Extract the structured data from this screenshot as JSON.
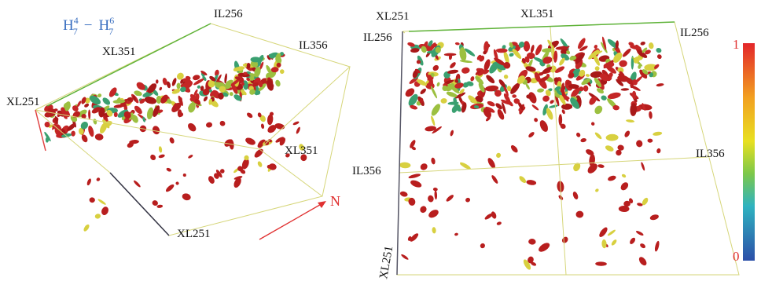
{
  "panel_left": {
    "formula": {
      "left": {
        "base": "H",
        "sup": "4",
        "sub": "7"
      },
      "operator": "−",
      "right": {
        "base": "H",
        "sup": "6",
        "sub": "7"
      }
    },
    "labels": {
      "il_top": "IL256",
      "xl_top": "XL351",
      "il_right": "IL356",
      "xl_left": "XL251",
      "xl_right": "XL351",
      "xl_bottom": "XL251"
    }
  },
  "north": "N",
  "panel_right": {
    "labels": {
      "xl_left_top": "XL251",
      "xl_top": "XL351",
      "il_left_top": "IL256",
      "il_right_top": "IL256",
      "il_left": "IL356",
      "il_right": "IL356",
      "xl_bottom": "XL251"
    }
  },
  "colorbar": {
    "max": "1",
    "min": "0"
  }
}
